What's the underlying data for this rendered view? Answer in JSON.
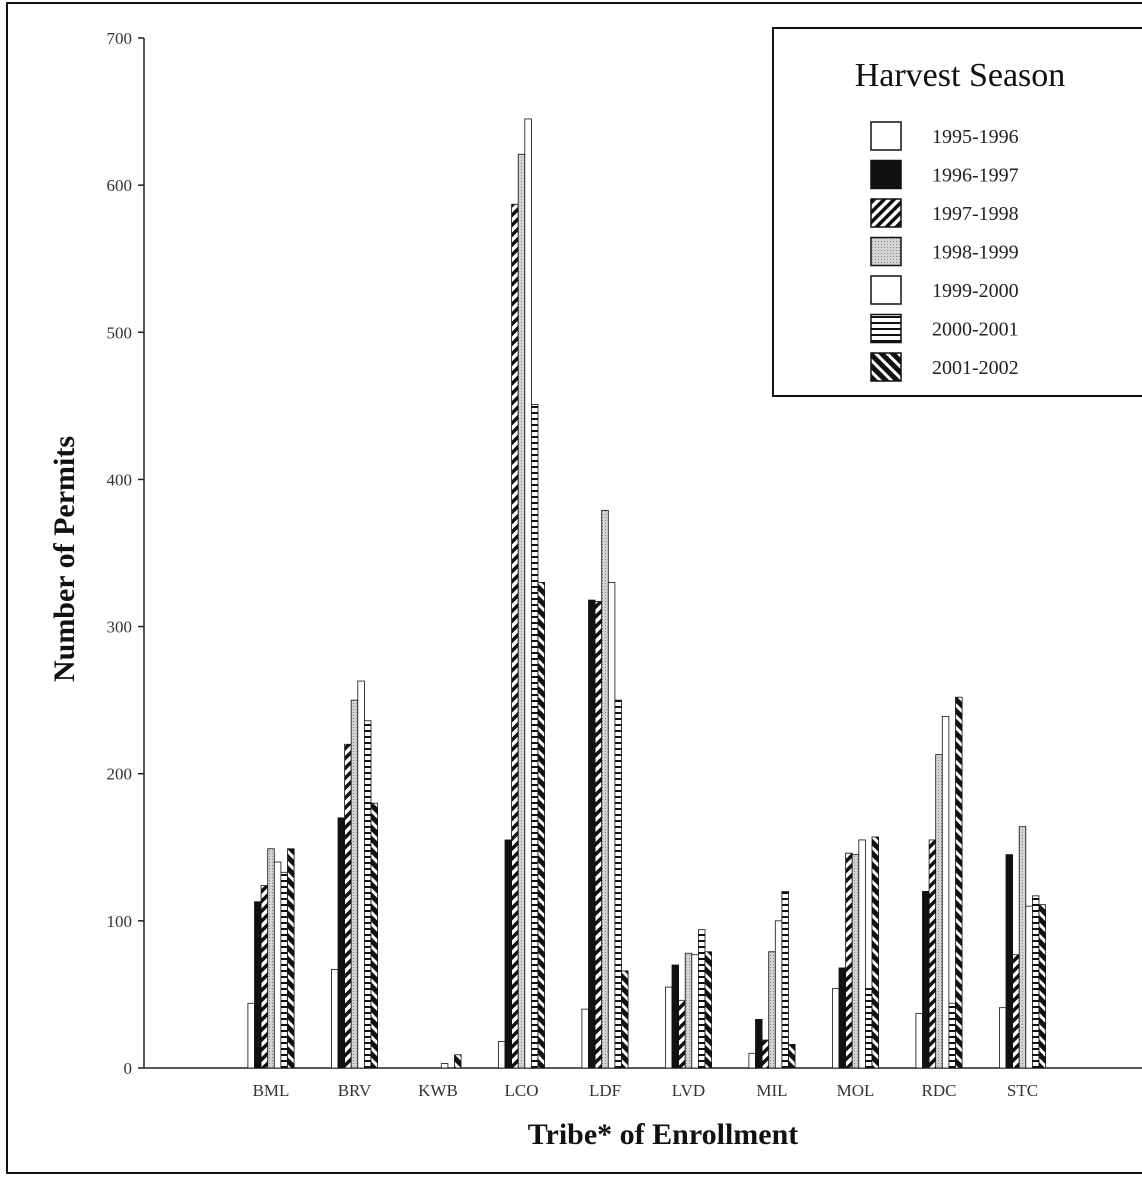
{
  "chart_data": {
    "type": "bar",
    "xlabel": "Tribe* of Enrollment",
    "ylabel": "Number of Permits",
    "ylim": [
      0,
      700
    ],
    "yticks": [
      0,
      100,
      200,
      300,
      400,
      500,
      600,
      700
    ],
    "ytick_labels": [
      "0",
      "100",
      "200",
      "300",
      "400",
      "500",
      "600",
      "700"
    ],
    "grid": false,
    "legend": {
      "title": "Harvest Season",
      "placement": "top-right"
    },
    "categories": [
      "BML",
      "BRV",
      "KWB",
      "LCO",
      "LDF",
      "LVD",
      "MIL",
      "MOL",
      "RDC",
      "STC"
    ],
    "series": [
      {
        "name": "1995-1996",
        "pattern": "empty",
        "color": "#ffffff",
        "values": [
          44,
          67,
          0,
          18,
          40,
          55,
          10,
          54,
          37,
          41
        ]
      },
      {
        "name": "1996-1997",
        "pattern": "solid",
        "color": "#111111",
        "values": [
          113,
          170,
          0,
          155,
          318,
          70,
          33,
          68,
          120,
          145
        ]
      },
      {
        "name": "1997-1998",
        "pattern": "diagonal",
        "color": "#111111",
        "values": [
          124,
          220,
          0,
          587,
          317,
          46,
          19,
          146,
          155,
          77
        ]
      },
      {
        "name": "1998-1999",
        "pattern": "dotted",
        "color": "#bdbdbd",
        "values": [
          149,
          250,
          0,
          621,
          379,
          78,
          79,
          145,
          213,
          164
        ]
      },
      {
        "name": "1999-2000",
        "pattern": "empty",
        "color": "#ffffff",
        "values": [
          140,
          263,
          3,
          645,
          330,
          77,
          100,
          155,
          239,
          110
        ]
      },
      {
        "name": "2000-2001",
        "pattern": "horizontal",
        "color": "#111111",
        "values": [
          133,
          236,
          0,
          451,
          250,
          94,
          120,
          54,
          44,
          117
        ]
      },
      {
        "name": "2001-2002",
        "pattern": "diagonal-thick",
        "color": "#111111",
        "values": [
          149,
          180,
          9,
          330,
          66,
          79,
          16,
          157,
          252,
          111
        ]
      }
    ]
  }
}
